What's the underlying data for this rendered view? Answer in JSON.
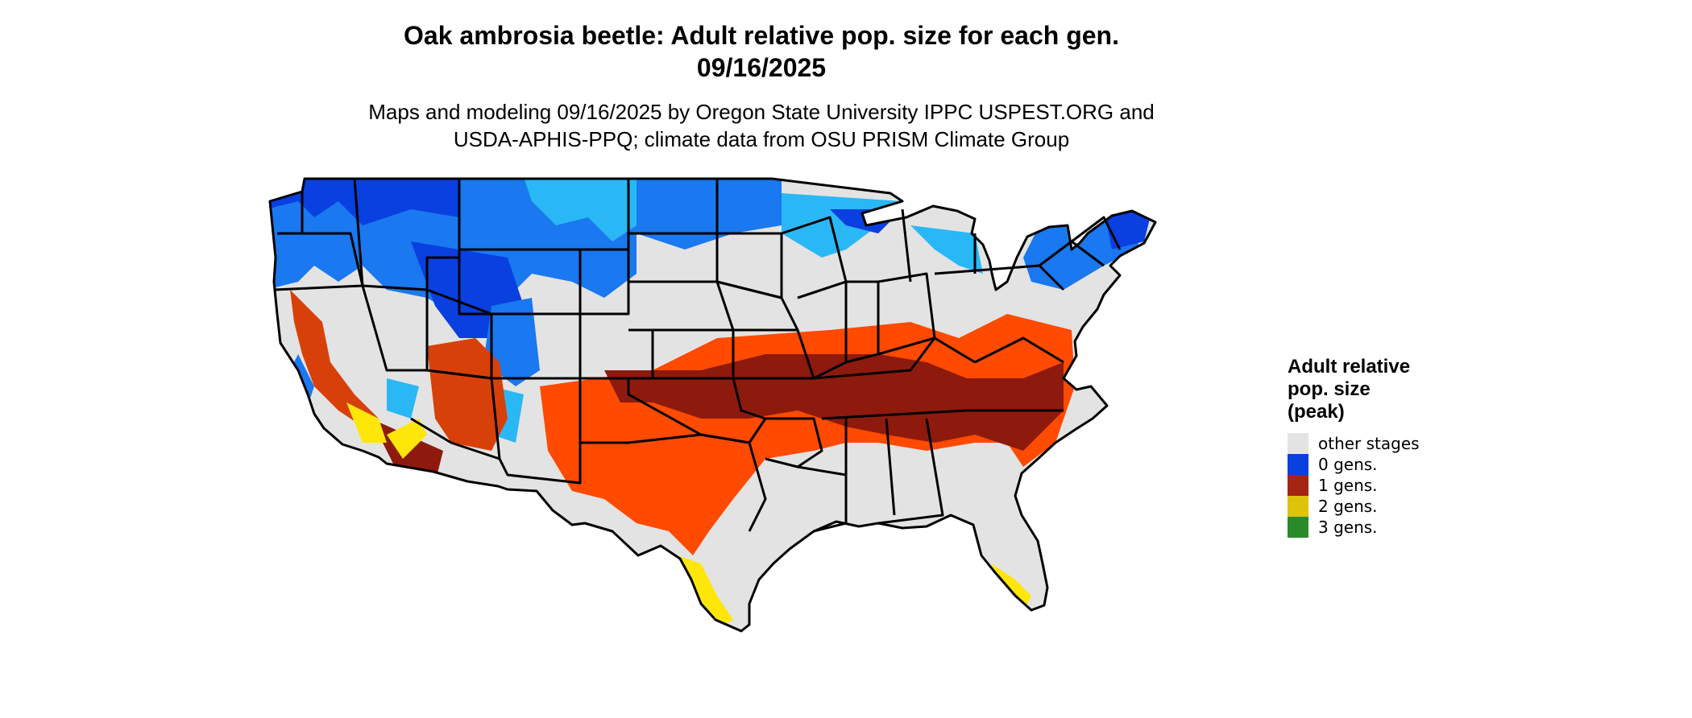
{
  "title_line1": "Oak ambrosia beetle: Adult relative pop. size for each gen.",
  "title_line2": "09/16/2025",
  "subtitle_line1": "Maps and modeling 09/16/2025 by Oregon State University IPPC USPEST.ORG and",
  "subtitle_line2": "USDA-APHIS-PPQ; climate data from OSU PRISM Climate Group",
  "legend": {
    "title_line1": "Adult relative",
    "title_line2": "pop. size",
    "title_line3": "(peak)",
    "items": [
      {
        "label": "other stages",
        "color": "#e3e3e3"
      },
      {
        "label": "0 gens.",
        "color": "#0a3fe0"
      },
      {
        "label": "1 gens.",
        "color": "#a52413"
      },
      {
        "label": "2 gens.",
        "color": "#ddc40a"
      },
      {
        "label": "3 gens.",
        "color": "#2a8a2a"
      }
    ]
  },
  "map_colors": {
    "other": "#e3e3e3",
    "blue_dark": "#0a3fe0",
    "blue_mid": "#1a78f0",
    "blue_light": "#29b8f5",
    "red_dark": "#8e1a0e",
    "red_mid": "#d8400a",
    "red_bright": "#ff4a00",
    "yellow": "#ffe60a",
    "border": "#000000"
  }
}
